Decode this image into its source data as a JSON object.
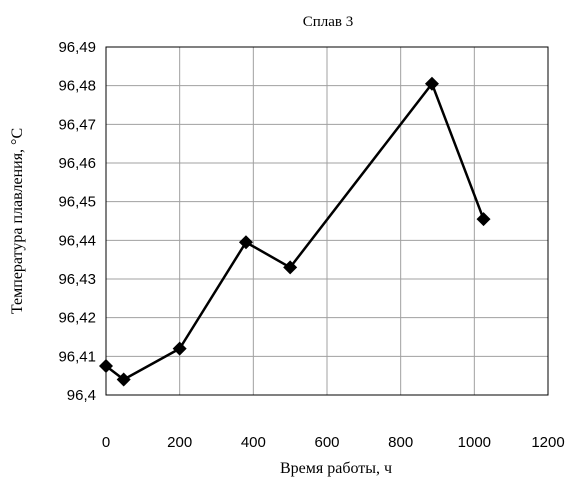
{
  "chart_data": {
    "type": "line",
    "title": "Сплав 3",
    "xlabel": "Время работы, ч",
    "ylabel": "Температура плавления, °С",
    "xlim": [
      0,
      1200
    ],
    "ylim": [
      96.4,
      96.49
    ],
    "x_ticks": [
      "0",
      "200",
      "400",
      "600",
      "800",
      "1000",
      "1200"
    ],
    "y_ticks": [
      "96,4",
      "96,41",
      "96,42",
      "96,43",
      "96,44",
      "96,45",
      "96,46",
      "96,47",
      "96,48",
      "96,49"
    ],
    "grid": true,
    "marker": "diamond",
    "series": [
      {
        "x": [
          0,
          48,
          200,
          380,
          500,
          885,
          1025
        ],
        "y": [
          96.4075,
          96.404,
          96.412,
          96.4395,
          96.433,
          96.4805,
          96.4455
        ]
      }
    ]
  }
}
